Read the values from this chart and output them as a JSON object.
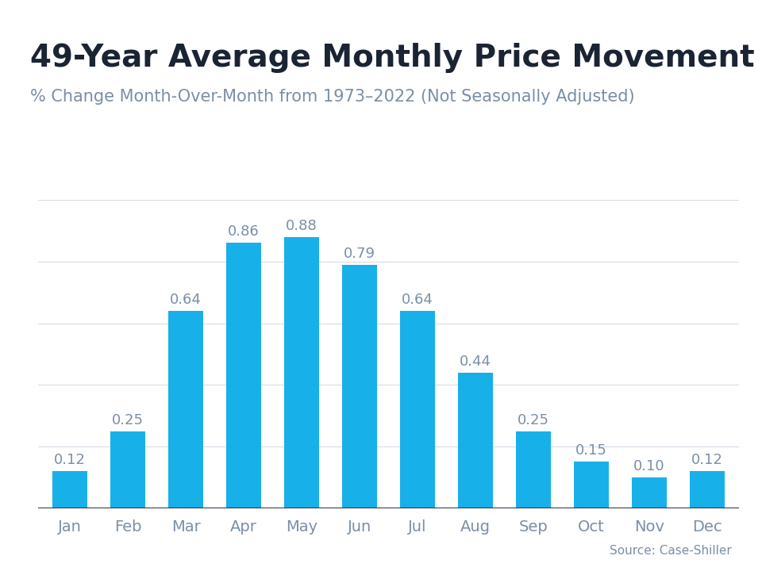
{
  "title": "49-Year Average Monthly Price Movement",
  "subtitle": "% Change Month-Over-Month from 1973–2022 (Not Seasonally Adjusted)",
  "source": "Source: Case-Shiller",
  "categories": [
    "Jan",
    "Feb",
    "Mar",
    "Apr",
    "May",
    "Jun",
    "Jul",
    "Aug",
    "Sep",
    "Oct",
    "Nov",
    "Dec"
  ],
  "values": [
    0.12,
    0.25,
    0.64,
    0.86,
    0.88,
    0.79,
    0.64,
    0.44,
    0.25,
    0.15,
    0.1,
    0.12
  ],
  "bar_color": "#17B0E8",
  "title_color": "#1a2433",
  "subtitle_color": "#7a8fa6",
  "label_color": "#7a8fa6",
  "tick_color": "#7a8fa6",
  "background_color": "#ffffff",
  "top_accent_color": "#29C4F5",
  "ylim": [
    0,
    1.0
  ],
  "grid_color": "#d5dce6",
  "title_fontsize": 28,
  "subtitle_fontsize": 15,
  "label_fontsize": 13,
  "tick_fontsize": 14,
  "source_fontsize": 11
}
